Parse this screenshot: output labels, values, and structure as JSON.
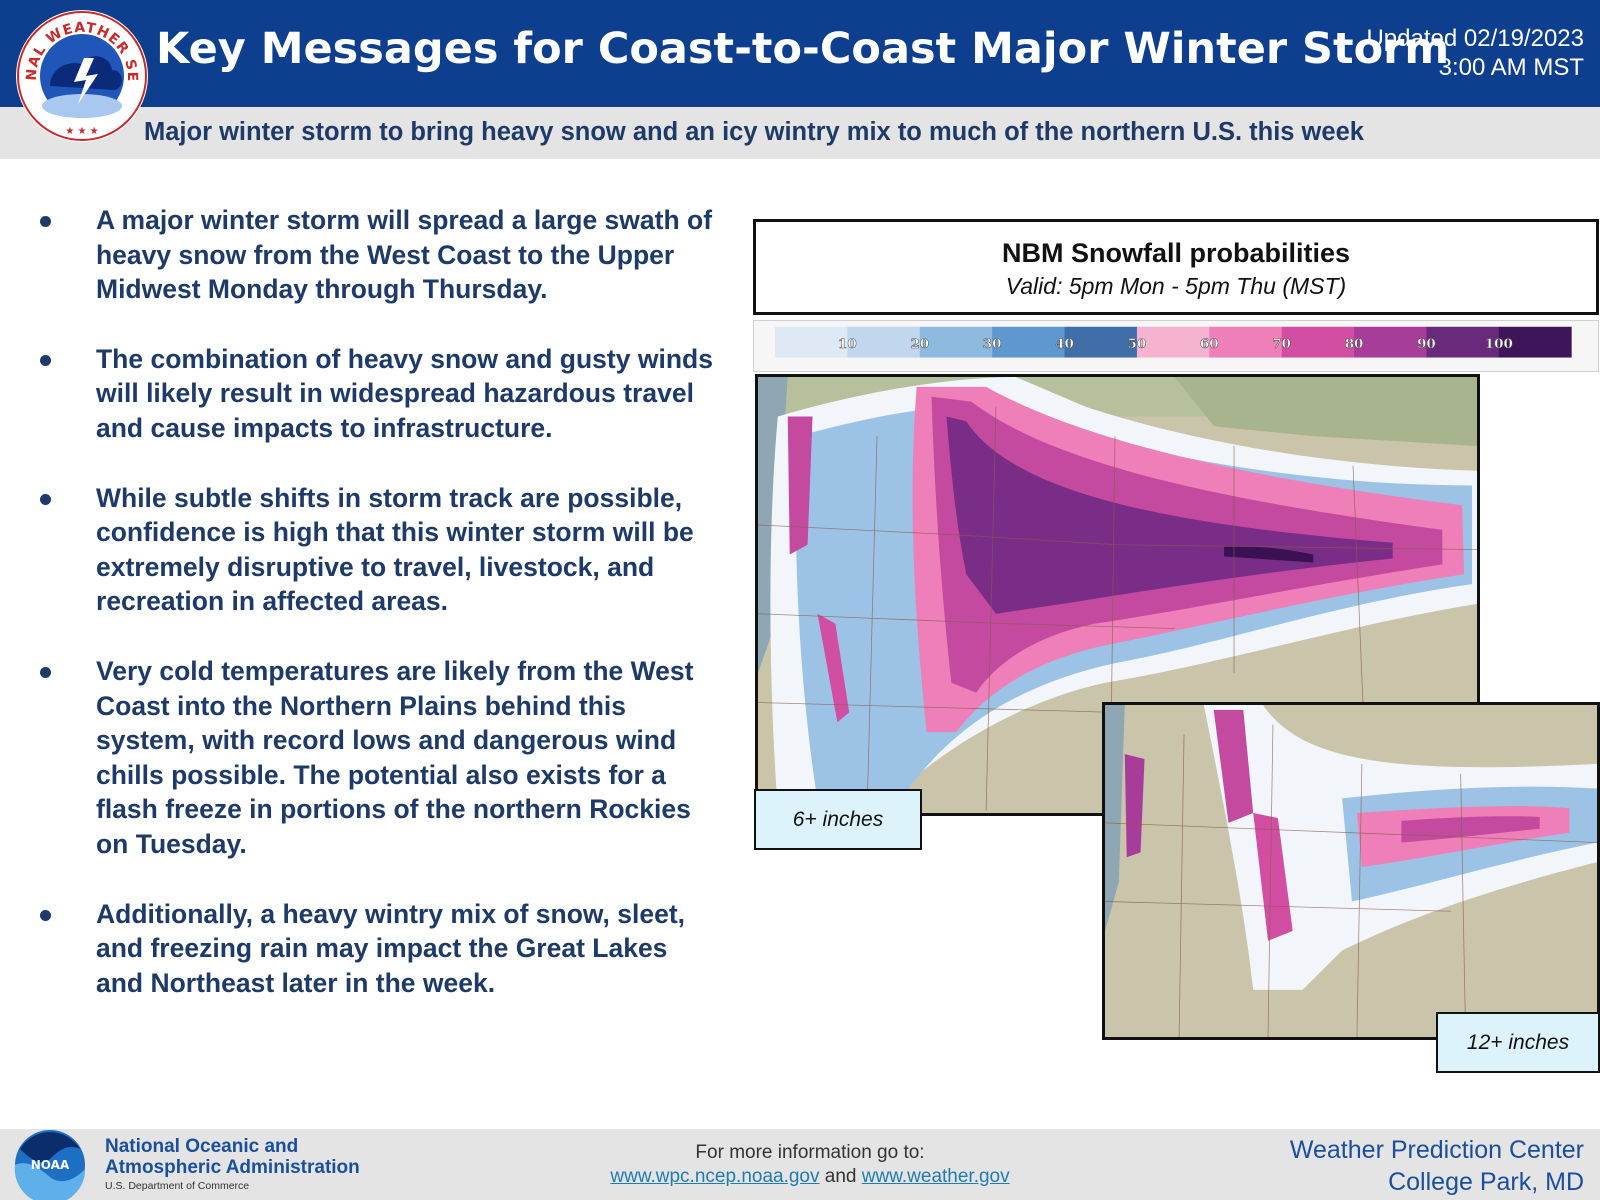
{
  "header": {
    "title": "Key Messages for Coast-to-Coast Major Winter Storm",
    "updated_line1": "Updated 02/19/2023",
    "updated_line2": "3:00 AM MST",
    "subtitle": "Major winter storm to bring heavy snow and an icy wintry mix to much of the northern U.S. this week",
    "logo_text": "NATIONAL WEATHER SERVICE"
  },
  "bullets": [
    "A major winter storm will spread a large swath of heavy snow from the West Coast to the Upper Midwest Monday through Thursday.",
    "The combination of heavy snow and gusty winds will likely result in widespread hazardous travel and cause impacts to infrastructure.",
    "While subtle shifts in storm track are possible, confidence is high that this winter storm will be extremely disruptive to travel, livestock, and recreation in affected areas.",
    "Very cold temperatures are likely from the West Coast into the Northern Plains behind this system, with record lows and dangerous wind chills possible. The potential also exists for a flash freeze in portions of the northern Rockies on Tuesday.",
    "Additionally, a heavy wintry mix of snow, sleet, and freezing rain may impact the Great Lakes and Northeast later in the week."
  ],
  "map": {
    "title": "NBM Snowfall probabilities",
    "valid": "Valid: 5pm Mon - 5pm Thu (MST)",
    "colorbar_labels": [
      "10",
      "20",
      "30",
      "40",
      "50",
      "60",
      "70",
      "80",
      "90",
      "100"
    ],
    "colorbar_colors": [
      "#dfe9f6",
      "#c0d7ee",
      "#8fbae0",
      "#5f98cf",
      "#3f6ea8",
      "#f6b3cf",
      "#ee7fb8",
      "#d24ea3",
      "#a73d99",
      "#6a2a7c",
      "#3e1559"
    ],
    "label_1": "6+ inches",
    "label_2": "12+ inches"
  },
  "footer": {
    "noaa_logo_text": "NOAA",
    "noaa_name_line1": "National Oceanic and",
    "noaa_name_line2": "Atmospheric Administration",
    "noaa_dept": "U.S. Department of Commerce",
    "info_line": "For more information go to:",
    "link1": "www.wpc.ncep.noaa.gov",
    "and_text": "and",
    "link2": "www.weather.gov",
    "wpc_line1": "Weather Prediction Center",
    "wpc_line2": "College Park, MD"
  }
}
